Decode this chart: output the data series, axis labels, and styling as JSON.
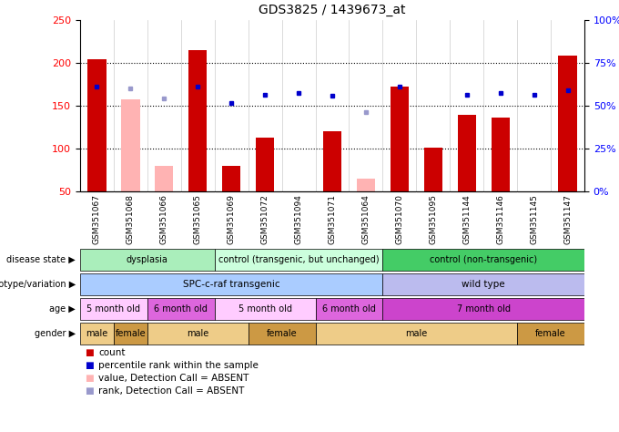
{
  "title": "GDS3825 / 1439673_at",
  "samples": [
    "GSM351067",
    "GSM351068",
    "GSM351066",
    "GSM351065",
    "GSM351069",
    "GSM351072",
    "GSM351094",
    "GSM351071",
    "GSM351064",
    "GSM351070",
    "GSM351095",
    "GSM351144",
    "GSM351146",
    "GSM351145",
    "GSM351147"
  ],
  "bar_values": [
    204,
    null,
    null,
    215,
    80,
    113,
    null,
    120,
    null,
    172,
    101,
    139,
    136,
    null,
    209
  ],
  "bar_absent": [
    null,
    157,
    80,
    null,
    null,
    null,
    null,
    null,
    65,
    null,
    null,
    null,
    null,
    null,
    null
  ],
  "percentile_present": [
    172,
    null,
    null,
    172,
    153,
    163,
    165,
    162,
    null,
    172,
    null,
    163,
    165,
    163,
    168
  ],
  "percentile_absent": [
    null,
    170,
    158,
    null,
    null,
    null,
    null,
    null,
    143,
    null,
    null,
    null,
    null,
    null,
    null
  ],
  "ylim_left": [
    50,
    250
  ],
  "ylim_right": [
    0,
    100
  ],
  "yticks_left": [
    50,
    100,
    150,
    200,
    250
  ],
  "yticks_right": [
    0,
    25,
    50,
    75,
    100
  ],
  "bar_color_present": "#cc0000",
  "bar_color_absent": "#ffb3b3",
  "dot_color_present": "#0000cc",
  "dot_color_absent": "#9999cc",
  "xticklabel_bg": "#d0d0d0",
  "disease_state": {
    "groups": [
      {
        "label": "dysplasia",
        "start": 0,
        "end": 4,
        "color": "#aaeebb"
      },
      {
        "label": "control (transgenic, but unchanged)",
        "start": 4,
        "end": 9,
        "color": "#ccffdd"
      },
      {
        "label": "control (non-transgenic)",
        "start": 9,
        "end": 15,
        "color": "#44cc66"
      }
    ]
  },
  "genotype": {
    "groups": [
      {
        "label": "SPC-c-raf transgenic",
        "start": 0,
        "end": 9,
        "color": "#aaccff"
      },
      {
        "label": "wild type",
        "start": 9,
        "end": 15,
        "color": "#bbbbee"
      }
    ]
  },
  "age": {
    "groups": [
      {
        "label": "5 month old",
        "start": 0,
        "end": 2,
        "color": "#ffccff"
      },
      {
        "label": "6 month old",
        "start": 2,
        "end": 4,
        "color": "#dd66dd"
      },
      {
        "label": "5 month old",
        "start": 4,
        "end": 7,
        "color": "#ffccff"
      },
      {
        "label": "6 month old",
        "start": 7,
        "end": 9,
        "color": "#dd66dd"
      },
      {
        "label": "7 month old",
        "start": 9,
        "end": 15,
        "color": "#cc44cc"
      }
    ]
  },
  "gender": {
    "groups": [
      {
        "label": "male",
        "start": 0,
        "end": 1,
        "color": "#eecc88"
      },
      {
        "label": "female",
        "start": 1,
        "end": 2,
        "color": "#cc9944"
      },
      {
        "label": "male",
        "start": 2,
        "end": 5,
        "color": "#eecc88"
      },
      {
        "label": "female",
        "start": 5,
        "end": 7,
        "color": "#cc9944"
      },
      {
        "label": "male",
        "start": 7,
        "end": 13,
        "color": "#eecc88"
      },
      {
        "label": "female",
        "start": 13,
        "end": 15,
        "color": "#cc9944"
      }
    ]
  },
  "row_labels": [
    "disease state",
    "genotype/variation",
    "age",
    "gender"
  ],
  "legend_items": [
    {
      "label": "count",
      "color": "#cc0000"
    },
    {
      "label": "percentile rank within the sample",
      "color": "#0000cc"
    },
    {
      "label": "value, Detection Call = ABSENT",
      "color": "#ffb3b3"
    },
    {
      "label": "rank, Detection Call = ABSENT",
      "color": "#9999cc"
    }
  ]
}
